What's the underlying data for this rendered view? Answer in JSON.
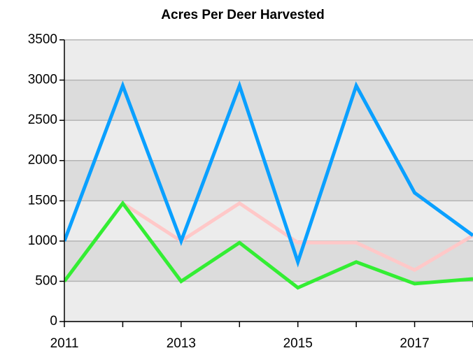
{
  "chart_data": {
    "type": "line",
    "title": "Acres Per Deer Harvested",
    "x": [
      2011,
      2012,
      2013,
      2014,
      2015,
      2016,
      2017,
      2018
    ],
    "xlim": [
      2011,
      2018
    ],
    "xticks": [
      2011,
      2013,
      2015,
      2017
    ],
    "xminorticks": [
      2012,
      2014,
      2016,
      2018
    ],
    "ylim": [
      0,
      3500
    ],
    "yticks": [
      0,
      500,
      1000,
      1500,
      2000,
      2500,
      3000,
      3500
    ],
    "grid": true,
    "bands": [
      "#ececec",
      "#dcdcdc"
    ],
    "series": [
      {
        "color": "#ffc8c8",
        "values": [
          500,
          1470,
          1000,
          1470,
          980,
          980,
          640,
          1070
        ]
      },
      {
        "color": "#0aa0ff",
        "values": [
          1000,
          2930,
          1000,
          2930,
          740,
          2930,
          1600,
          1070
        ]
      },
      {
        "color": "#33ee33",
        "values": [
          500,
          1470,
          500,
          980,
          420,
          740,
          470,
          530
        ]
      }
    ]
  }
}
